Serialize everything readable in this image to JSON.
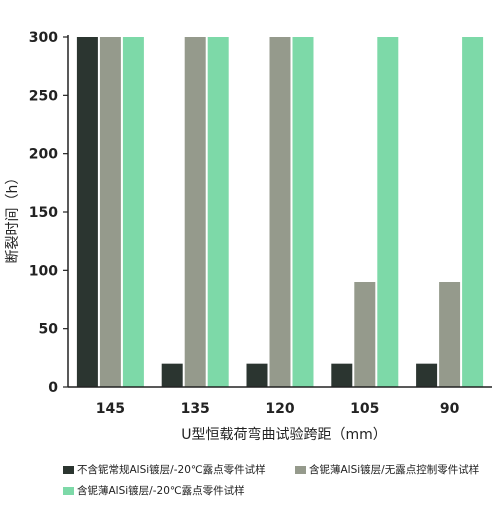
{
  "chart_data": {
    "type": "bar",
    "categories": [
      "145",
      "135",
      "120",
      "105",
      "90"
    ],
    "series": [
      {
        "name": "不含铌常规AlSi镀层/-20℃露点零件试样",
        "values": [
          300,
          20,
          20,
          20,
          20
        ]
      },
      {
        "name": "含铌薄AlSi镀层/无露点控制零件试样",
        "values": [
          300,
          300,
          300,
          90,
          90
        ]
      },
      {
        "name": "含铌薄AlSi镀层/-20℃露点零件试样",
        "values": [
          300,
          300,
          300,
          300,
          300
        ]
      }
    ],
    "xlabel": "U型恒载荷弯曲试验跨距（mm）",
    "ylabel": "断裂时间（h）",
    "ylim": [
      0,
      300
    ],
    "yticks": [
      0,
      50,
      100,
      150,
      200,
      250,
      300
    ],
    "grid": false,
    "legend_position": "bottom",
    "colors": [
      "#2b3530",
      "#959a8c",
      "#7dd9a8"
    ]
  }
}
